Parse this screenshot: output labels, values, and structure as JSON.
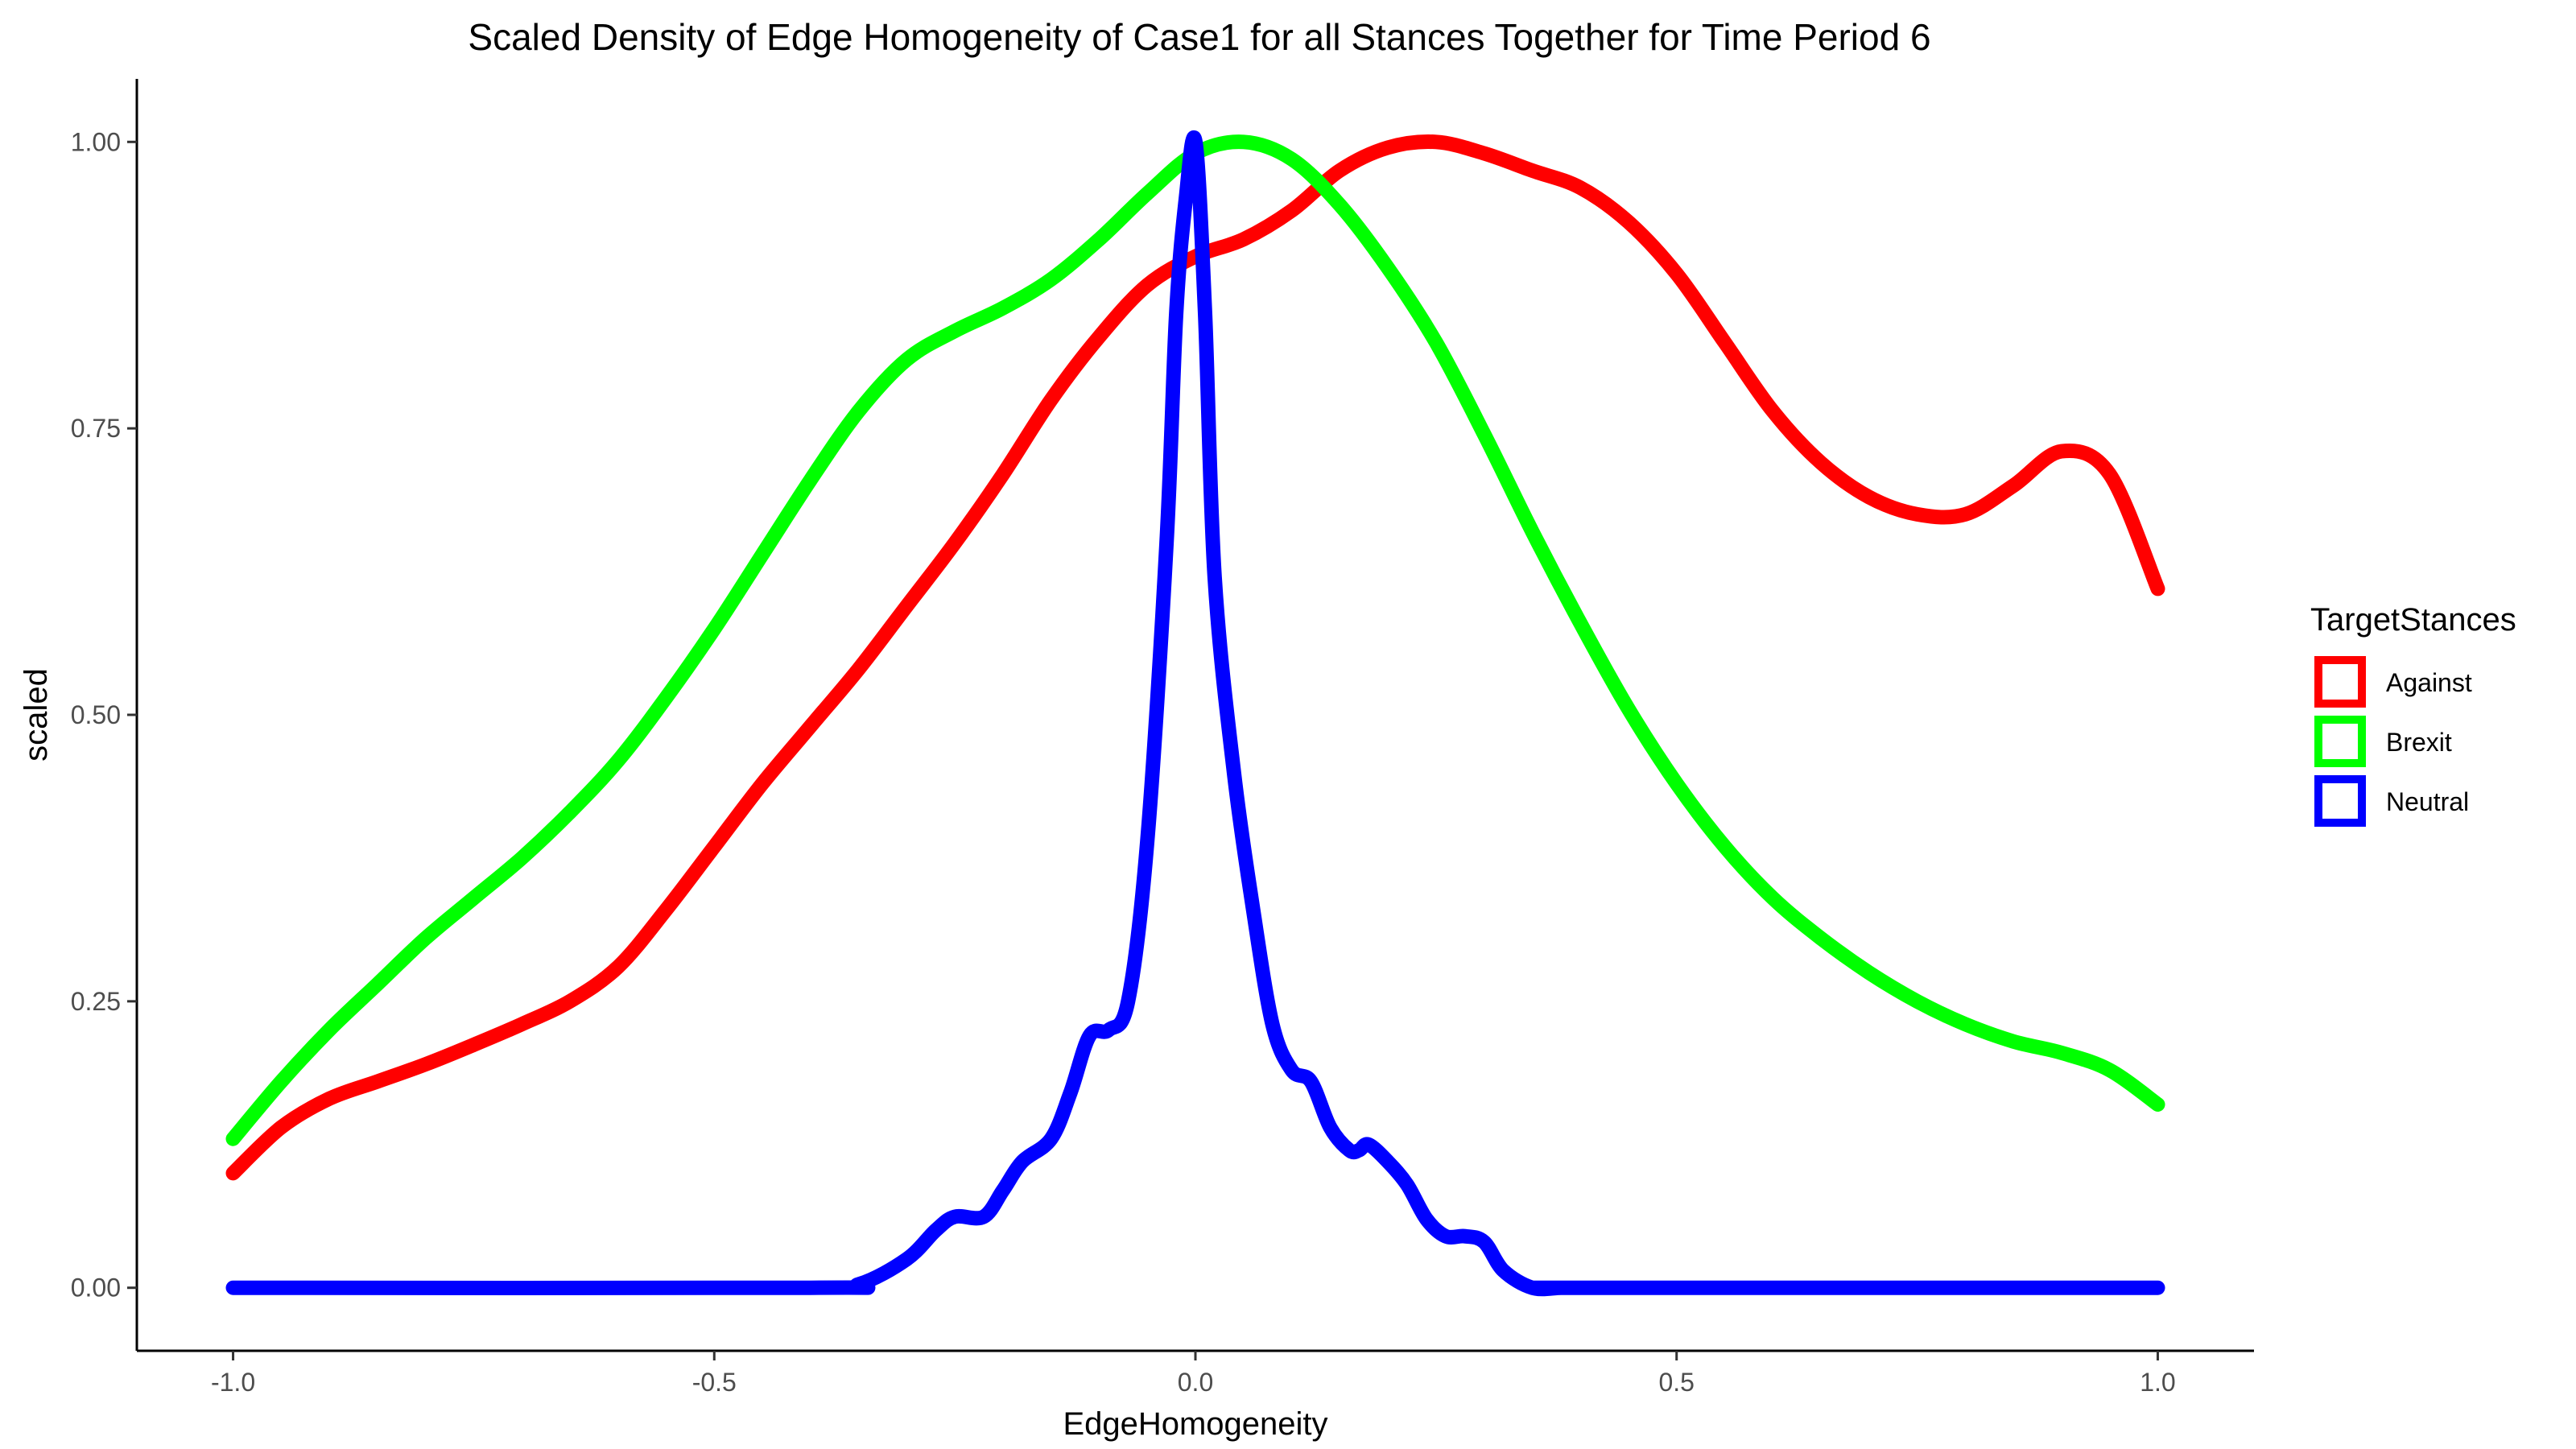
{
  "chart_data": {
    "type": "line",
    "title": "Scaled Density of Edge Homogeneity of Case1 for all Stances Together for Time Period 6",
    "xlabel": "EdgeHomogeneity",
    "ylabel": "scaled",
    "xlim": [
      -1.1,
      1.1
    ],
    "ylim": [
      -0.055,
      1.055
    ],
    "xticks": [
      -1.0,
      -0.5,
      0.0,
      0.5,
      1.0
    ],
    "xtick_labels": [
      "-1.0",
      "-0.5",
      "0.0",
      "0.5",
      "1.0"
    ],
    "yticks": [
      0.0,
      0.25,
      0.5,
      0.75,
      1.0
    ],
    "ytick_labels": [
      "0.00",
      "0.25",
      "0.50",
      "0.75",
      "1.00"
    ],
    "grid": false,
    "legend": {
      "title": "TargetStances",
      "position": "right"
    },
    "series": [
      {
        "name": "Against",
        "color": "#ff0000",
        "x": [
          -1.0,
          -0.95,
          -0.9,
          -0.85,
          -0.8,
          -0.75,
          -0.7,
          -0.65,
          -0.6,
          -0.55,
          -0.5,
          -0.45,
          -0.4,
          -0.35,
          -0.3,
          -0.25,
          -0.2,
          -0.15,
          -0.1,
          -0.05,
          0.0,
          0.05,
          0.1,
          0.15,
          0.2,
          0.25,
          0.3,
          0.35,
          0.4,
          0.45,
          0.5,
          0.55,
          0.6,
          0.65,
          0.7,
          0.75,
          0.8,
          0.85,
          0.9,
          0.95,
          1.0
        ],
        "y": [
          0.1,
          0.14,
          0.165,
          0.18,
          0.195,
          0.212,
          0.23,
          0.25,
          0.28,
          0.33,
          0.385,
          0.44,
          0.49,
          0.54,
          0.595,
          0.65,
          0.71,
          0.775,
          0.83,
          0.875,
          0.9,
          0.915,
          0.94,
          0.975,
          0.995,
          1.0,
          0.99,
          0.975,
          0.96,
          0.93,
          0.885,
          0.825,
          0.765,
          0.72,
          0.69,
          0.675,
          0.675,
          0.7,
          0.73,
          0.71,
          0.61
        ]
      },
      {
        "name": "Brexit",
        "color": "#00ff00",
        "x": [
          -1.0,
          -0.95,
          -0.9,
          -0.85,
          -0.8,
          -0.75,
          -0.7,
          -0.65,
          -0.6,
          -0.55,
          -0.5,
          -0.45,
          -0.4,
          -0.35,
          -0.3,
          -0.25,
          -0.2,
          -0.15,
          -0.1,
          -0.05,
          0.0,
          0.05,
          0.1,
          0.15,
          0.2,
          0.25,
          0.3,
          0.35,
          0.4,
          0.45,
          0.5,
          0.55,
          0.6,
          0.65,
          0.7,
          0.75,
          0.8,
          0.85,
          0.9,
          0.95,
          1.0
        ],
        "y": [
          0.13,
          0.18,
          0.225,
          0.265,
          0.305,
          0.34,
          0.375,
          0.415,
          0.46,
          0.515,
          0.575,
          0.64,
          0.705,
          0.765,
          0.81,
          0.835,
          0.855,
          0.88,
          0.915,
          0.955,
          0.99,
          1.0,
          0.985,
          0.945,
          0.89,
          0.825,
          0.745,
          0.66,
          0.58,
          0.505,
          0.44,
          0.385,
          0.34,
          0.305,
          0.275,
          0.25,
          0.23,
          0.215,
          0.205,
          0.19,
          0.16
        ]
      },
      {
        "name": "Neutral",
        "color": "#0000ff",
        "x": [
          -1.0,
          -0.4,
          -0.35,
          -0.3,
          -0.27,
          -0.25,
          -0.22,
          -0.2,
          -0.18,
          -0.15,
          -0.13,
          -0.11,
          -0.09,
          -0.07,
          -0.05,
          -0.03,
          -0.02,
          -0.01,
          0.0,
          0.01,
          0.02,
          0.04,
          0.06,
          0.08,
          0.1,
          0.12,
          0.14,
          0.16,
          0.17,
          0.18,
          0.2,
          0.22,
          0.24,
          0.26,
          0.28,
          0.3,
          0.32,
          0.35,
          0.38,
          0.4,
          1.0
        ],
        "y": [
          0.0,
          0.0,
          0.003,
          0.025,
          0.05,
          0.062,
          0.062,
          0.085,
          0.11,
          0.13,
          0.17,
          0.22,
          0.225,
          0.25,
          0.39,
          0.65,
          0.85,
          0.95,
          1.0,
          0.85,
          0.62,
          0.45,
          0.33,
          0.23,
          0.19,
          0.18,
          0.14,
          0.12,
          0.12,
          0.125,
          0.11,
          0.09,
          0.06,
          0.045,
          0.045,
          0.04,
          0.015,
          0.0,
          0.0,
          0.0,
          0.0
        ]
      }
    ]
  }
}
